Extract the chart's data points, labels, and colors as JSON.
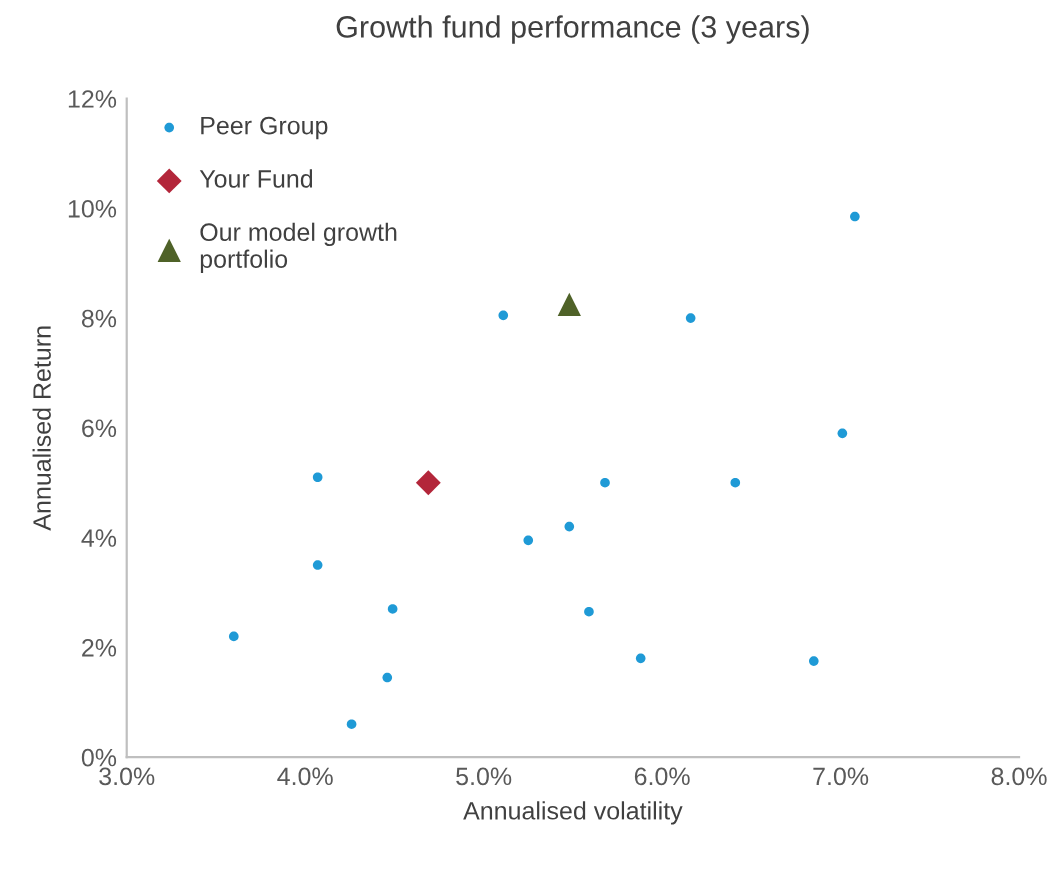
{
  "chart_data": {
    "type": "scatter",
    "title": "Growth fund performance (3 years)",
    "xlabel": "Annualised volatility",
    "ylabel": "Annualised Return",
    "xlim": [
      3.0,
      8.0
    ],
    "xticks": [
      {
        "value": 3.0,
        "label": "3.0%"
      },
      {
        "value": 4.0,
        "label": "4.0%"
      },
      {
        "value": 5.0,
        "label": "5.0%"
      },
      {
        "value": 6.0,
        "label": "6.0%"
      },
      {
        "value": 7.0,
        "label": "7.0%"
      },
      {
        "value": 8.0,
        "label": "8.0%"
      }
    ],
    "ylim": [
      0,
      12
    ],
    "yticks": [
      {
        "value": 0,
        "label": "0%"
      },
      {
        "value": 2,
        "label": "2%"
      },
      {
        "value": 4,
        "label": "4%"
      },
      {
        "value": 6,
        "label": "6%"
      },
      {
        "value": 8,
        "label": "8%"
      },
      {
        "value": 10,
        "label": "10%"
      },
      {
        "value": 12,
        "label": "12%"
      }
    ],
    "grid": false,
    "legend": "top left",
    "series": [
      {
        "name": "Peer Group",
        "color": "#1f9ad6",
        "marker": "circle",
        "x": [
          3.6,
          4.07,
          4.07,
          4.26,
          4.46,
          4.49,
          5.11,
          5.25,
          5.48,
          5.59,
          5.68,
          5.88,
          6.16,
          6.41,
          6.85,
          7.01,
          7.08
        ],
        "values": [
          2.2,
          5.1,
          3.5,
          0.6,
          1.45,
          2.7,
          8.05,
          3.95,
          4.2,
          2.65,
          5.0,
          1.8,
          8.0,
          5.0,
          1.75,
          5.9,
          9.85
        ]
      },
      {
        "name": "Your Fund",
        "color": "#b3263a",
        "marker": "diamond",
        "x": [
          4.69
        ],
        "values": [
          5.0
        ]
      },
      {
        "name": "Our model growth\nportfolio",
        "color": "#4f6228",
        "marker": "triangle",
        "x": [
          5.48
        ],
        "values": [
          8.25
        ]
      }
    ]
  }
}
